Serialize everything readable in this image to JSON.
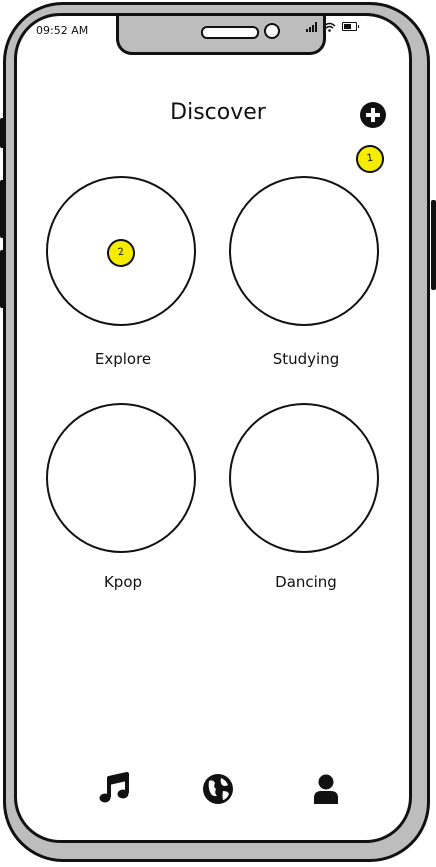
{
  "status_bar": {
    "time": "09:52 AM"
  },
  "header": {
    "title": "Discover",
    "add_icon": "plus-circle-icon"
  },
  "annotations": [
    {
      "label": "1"
    },
    {
      "label": "2"
    }
  ],
  "categories": [
    {
      "label": "Explore"
    },
    {
      "label": "Studying"
    },
    {
      "label": "Kpop"
    },
    {
      "label": "Dancing"
    }
  ],
  "tab_bar": {
    "items": [
      {
        "icon": "music-note-icon"
      },
      {
        "icon": "globe-icon"
      },
      {
        "icon": "user-icon"
      }
    ]
  },
  "colors": {
    "highlight": "#f5ec00",
    "ink": "#111111",
    "frame": "#bdbdbd"
  }
}
